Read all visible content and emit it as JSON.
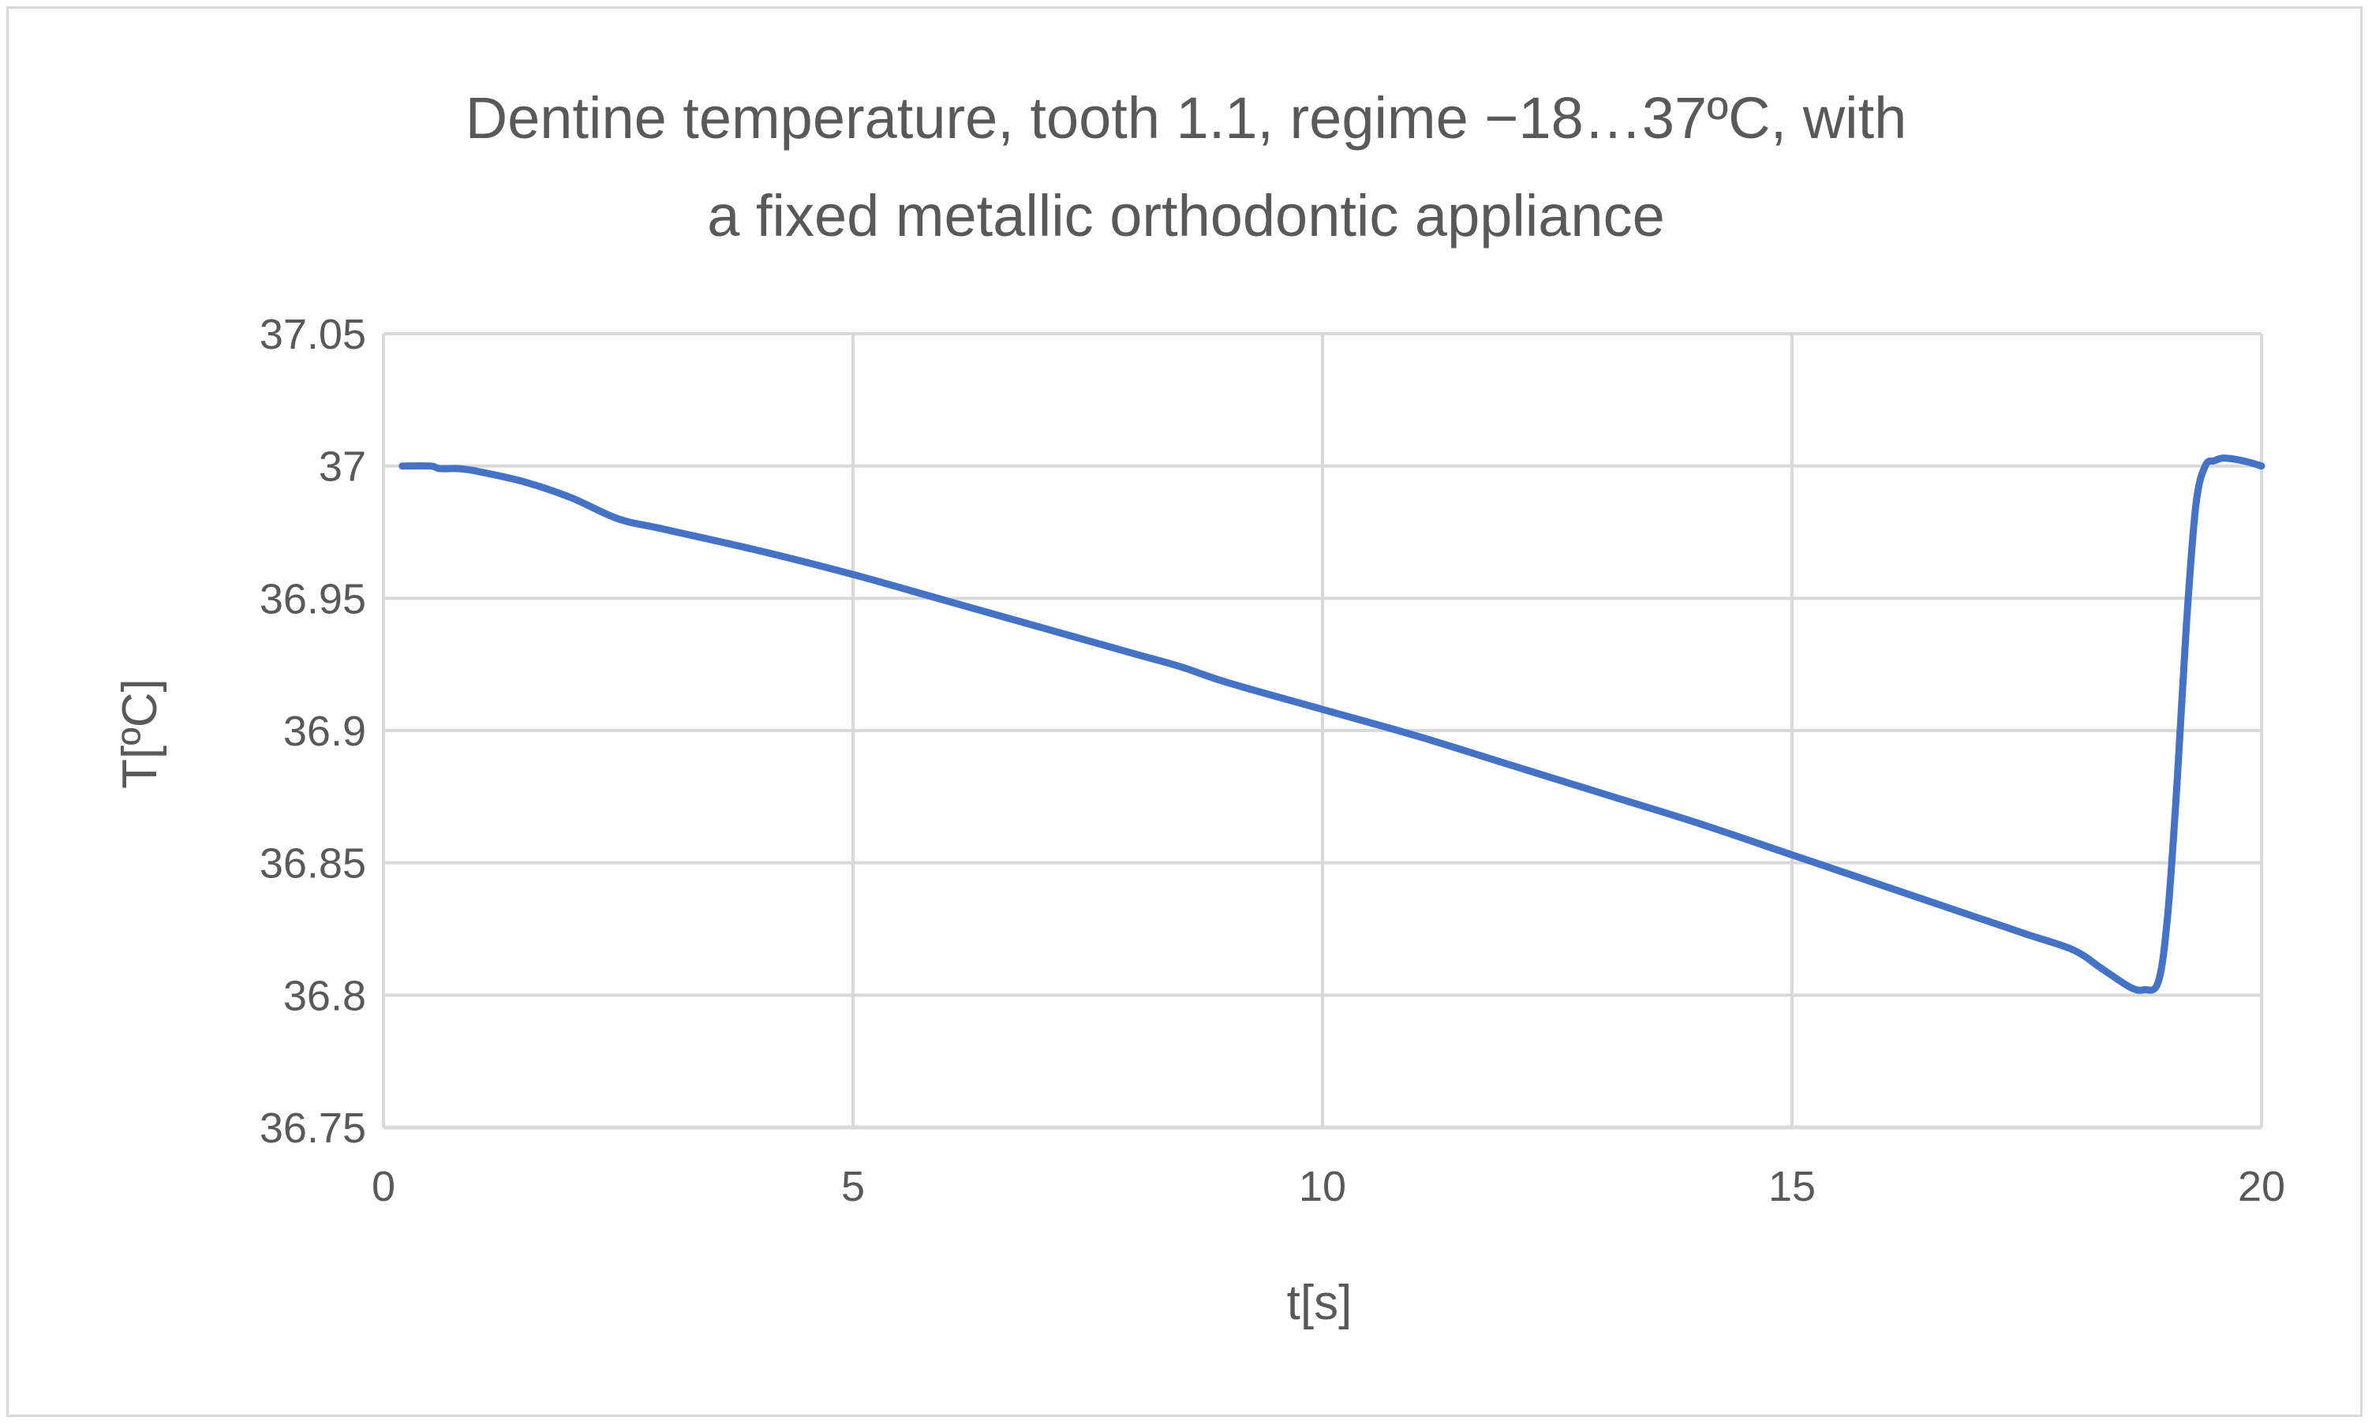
{
  "chart_data": {
    "type": "line",
    "title": "Dentine temperature, tooth 1.1, regime −18…37ºC, with a fixed metallic orthodontic appliance",
    "title_lines": [
      "Dentine temperature, tooth 1.1, regime −18…37ºC, with",
      "a fixed metallic orthodontic appliance"
    ],
    "xlabel": "t[s]",
    "ylabel": "T[ºC]",
    "xlim": [
      0,
      20
    ],
    "ylim": [
      36.75,
      37.05
    ],
    "xticks": [
      0,
      5,
      10,
      15,
      20
    ],
    "yticks": [
      36.75,
      36.8,
      36.85,
      36.9,
      36.95,
      37,
      37.05
    ],
    "xtick_labels": [
      "0",
      "5",
      "10",
      "15",
      "20"
    ],
    "ytick_labels": [
      "36.75",
      "36.8",
      "36.85",
      "36.9",
      "36.95",
      "37",
      "37.05"
    ],
    "grid": true,
    "legend": "none",
    "colors": {
      "line": "#4472c4",
      "grid": "#d9d9d9",
      "text": "#595959"
    },
    "series": [
      {
        "x": [
          0.2,
          0.5,
          0.6,
          0.8,
          1.0,
          1.5,
          2.0,
          2.5,
          3.0,
          4.0,
          5.0,
          6.0,
          7.0,
          8.0,
          8.5,
          9.0,
          10.0,
          11.0,
          12.0,
          13.0,
          14.0,
          15.0,
          16.0,
          17.0,
          17.5,
          18.0,
          18.3,
          18.6,
          18.75,
          18.9,
          19.0,
          19.1,
          19.2,
          19.3,
          19.4,
          19.5,
          19.6,
          19.8,
          20.0
        ],
        "y": [
          37.0,
          37.0,
          36.999,
          36.999,
          36.998,
          36.994,
          36.988,
          36.98,
          36.976,
          36.968,
          36.959,
          36.949,
          36.939,
          36.929,
          36.924,
          36.918,
          36.908,
          36.898,
          36.887,
          36.876,
          36.865,
          36.853,
          36.841,
          36.829,
          36.823,
          36.817,
          36.81,
          36.803,
          36.802,
          36.805,
          36.83,
          36.88,
          36.94,
          36.985,
          37.0,
          37.002,
          37.003,
          37.002,
          37.0
        ]
      }
    ]
  }
}
